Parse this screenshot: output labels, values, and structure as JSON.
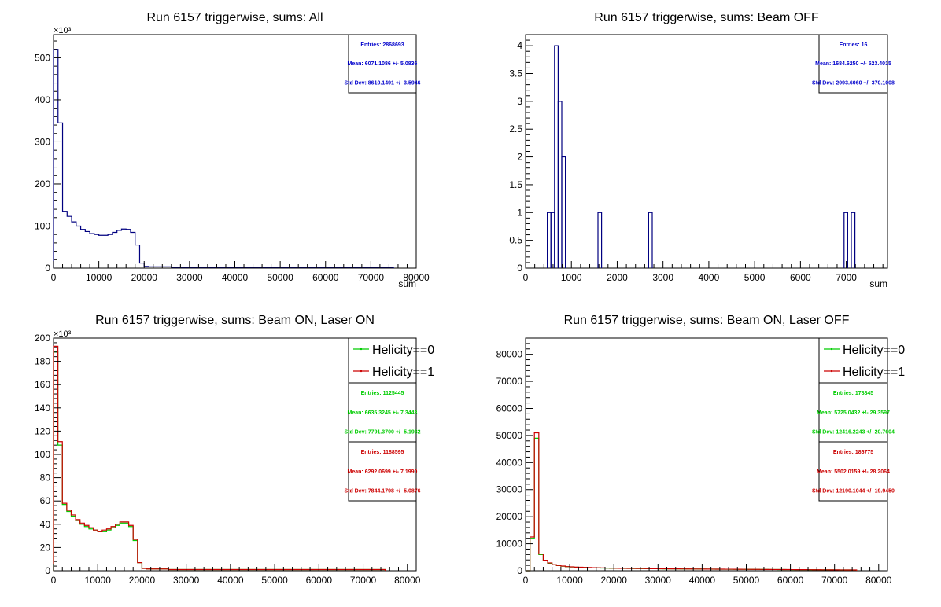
{
  "chart_data": [
    {
      "type": "histogram",
      "title": "Run 6157 triggerwise, sums: All",
      "xlabel": "sum",
      "ylabel": "",
      "y_multiplier": "×10³",
      "xlim": [
        0,
        80000
      ],
      "ylim": [
        0,
        555
      ],
      "x_ticks": [
        0,
        10000,
        20000,
        30000,
        40000,
        50000,
        60000,
        70000,
        80000
      ],
      "y_ticks": [
        0,
        100,
        200,
        300,
        400,
        500
      ],
      "bin_width": 1000,
      "series": [
        {
          "color": "#000080",
          "x": [
            0,
            1000,
            2000,
            3000,
            4000,
            5000,
            6000,
            7000,
            8000,
            9000,
            10000,
            11000,
            12000,
            13000,
            14000,
            15000,
            16000,
            17000,
            18000,
            19000,
            20000,
            21000,
            22000,
            23000,
            24000,
            25000,
            26000,
            27000,
            28000,
            29000,
            30000,
            31000,
            32000,
            33000,
            34000,
            35000,
            36000,
            37000,
            38000,
            39000,
            40000,
            41000,
            42000,
            43000,
            44000,
            45000,
            46000,
            47000,
            48000,
            49000,
            50000,
            51000,
            52000,
            53000,
            54000,
            55000,
            56000,
            57000,
            58000,
            59000,
            60000,
            61000,
            62000,
            63000,
            64000,
            65000,
            66000,
            67000,
            68000,
            69000,
            70000,
            71000,
            72000,
            73000,
            74000
          ],
          "values": [
            520,
            345,
            135,
            123,
            110,
            100,
            92,
            87,
            82,
            80,
            78,
            78,
            80,
            85,
            90,
            93,
            92,
            85,
            55,
            12,
            4,
            3,
            3,
            3,
            3,
            3,
            2,
            2,
            2,
            2,
            2,
            2,
            2,
            2,
            2,
            2,
            2,
            2,
            2,
            2,
            2,
            2,
            2,
            2,
            2,
            2,
            2,
            2,
            2,
            2,
            2,
            2,
            2,
            2,
            2,
            2,
            2,
            2,
            2,
            2,
            2,
            2,
            2,
            2,
            2,
            2,
            2,
            2,
            2,
            2,
            2,
            2,
            2,
            2,
            2
          ]
        }
      ],
      "stats": [
        {
          "color": "#0000cc",
          "entries": "Entries: 2868693",
          "mean": "Mean: 6071.1086 +/- 5.0836",
          "std": "Std Dev: 8610.1491 +/- 3.5946"
        }
      ]
    },
    {
      "type": "histogram",
      "title": "Run 6157 triggerwise, sums: Beam OFF",
      "xlabel": "sum",
      "ylabel": "",
      "y_multiplier": "",
      "xlim": [
        0,
        7900
      ],
      "ylim": [
        0,
        4.2
      ],
      "x_ticks": [
        0,
        1000,
        2000,
        3000,
        4000,
        5000,
        6000,
        7000
      ],
      "y_ticks": [
        0,
        0.5,
        1,
        1.5,
        2,
        2.5,
        3,
        3.5,
        4
      ],
      "bin_width": 79,
      "series": [
        {
          "color": "#000080",
          "x": [
            474,
            553,
            632,
            711,
            790,
            1580,
            2686,
            6952,
            7110
          ],
          "values": [
            1,
            1,
            4,
            3,
            2,
            1,
            1,
            1,
            1
          ]
        }
      ],
      "stats": [
        {
          "color": "#0000cc",
          "entries": "Entries: 16",
          "mean": "Mean: 1684.6250 +/- 523.4015",
          "std": "Std Dev: 2093.6060 +/- 370.1008"
        }
      ]
    },
    {
      "type": "histogram",
      "title": "Run 6157 triggerwise, sums: Beam ON, Laser ON",
      "xlabel": "",
      "ylabel": "",
      "y_multiplier": "×10³",
      "xlim": [
        0,
        82000
      ],
      "ylim": [
        0,
        200
      ],
      "x_ticks": [
        0,
        10000,
        20000,
        30000,
        40000,
        50000,
        60000,
        70000,
        80000
      ],
      "y_ticks": [
        0,
        20,
        40,
        60,
        80,
        100,
        120,
        140,
        160,
        180,
        200
      ],
      "bin_width": 1000,
      "legend": [
        "Helicity==0",
        "Helicity==1"
      ],
      "series": [
        {
          "name": "Helicity==0",
          "color": "#00cc00",
          "x": [
            0,
            1000,
            2000,
            3000,
            4000,
            5000,
            6000,
            7000,
            8000,
            9000,
            10000,
            11000,
            12000,
            13000,
            14000,
            15000,
            16000,
            17000,
            18000,
            19000,
            20000,
            21000,
            22000,
            23000,
            24000,
            25000,
            26000,
            27000,
            28000,
            29000,
            30000,
            31000,
            32000,
            33000,
            34000,
            35000,
            36000,
            37000,
            38000,
            39000,
            40000,
            41000,
            42000,
            43000,
            44000,
            45000,
            46000,
            47000,
            48000,
            49000,
            50000,
            51000,
            52000,
            53000,
            54000,
            55000,
            56000,
            57000,
            58000,
            59000,
            60000,
            61000,
            62000,
            63000,
            64000,
            65000,
            66000,
            67000,
            68000,
            69000,
            70000,
            71000,
            72000,
            73000,
            74000
          ],
          "values": [
            188,
            108,
            57,
            51,
            47,
            43,
            40,
            38,
            36,
            35,
            34,
            34,
            35,
            37,
            39,
            41,
            41,
            38,
            26,
            7,
            2,
            1.5,
            1.5,
            1.5,
            1.5,
            1.5,
            1,
            1,
            1,
            1,
            1,
            1,
            1,
            1,
            1,
            1,
            1,
            1,
            1,
            1,
            1,
            1,
            1,
            1,
            1,
            1,
            1,
            1,
            1,
            1,
            1,
            1,
            1,
            1,
            1,
            1,
            1,
            1,
            1,
            1,
            1,
            1,
            1,
            1,
            1,
            1,
            1,
            1,
            1,
            1,
            1,
            1,
            1,
            1,
            1
          ]
        },
        {
          "name": "Helicity==1",
          "color": "#cc0000",
          "x": [
            0,
            1000,
            2000,
            3000,
            4000,
            5000,
            6000,
            7000,
            8000,
            9000,
            10000,
            11000,
            12000,
            13000,
            14000,
            15000,
            16000,
            17000,
            18000,
            19000,
            20000,
            21000,
            22000,
            23000,
            24000,
            25000,
            26000,
            27000,
            28000,
            29000,
            30000,
            31000,
            32000,
            33000,
            34000,
            35000,
            36000,
            37000,
            38000,
            39000,
            40000,
            41000,
            42000,
            43000,
            44000,
            45000,
            46000,
            47000,
            48000,
            49000,
            50000,
            51000,
            52000,
            53000,
            54000,
            55000,
            56000,
            57000,
            58000,
            59000,
            60000,
            61000,
            62000,
            63000,
            64000,
            65000,
            66000,
            67000,
            68000,
            69000,
            70000,
            71000,
            72000,
            73000,
            74000
          ],
          "values": [
            193,
            111,
            58,
            52,
            48,
            44,
            41,
            39,
            37,
            35,
            34,
            35,
            36,
            38,
            40,
            42,
            42,
            39,
            27,
            7,
            2,
            1.5,
            1.5,
            1.5,
            1.5,
            1.5,
            1,
            1,
            1,
            1,
            1,
            1,
            1,
            1,
            1,
            1,
            1,
            1,
            1,
            1,
            1,
            1,
            1,
            1,
            1,
            1,
            1,
            1,
            1,
            1,
            1,
            1,
            1,
            1,
            1,
            1,
            1,
            1,
            1,
            1,
            1,
            1,
            1,
            1,
            1,
            1,
            1,
            1,
            1,
            1,
            1,
            1,
            1,
            1,
            1
          ]
        }
      ],
      "stats": [
        {
          "color": "#00cc00",
          "entries": "Entries: 1125445",
          "mean": "Mean: 6635.3245 +/- 7.3443",
          "std": "Std Dev: 7791.3700 +/- 5.1932"
        },
        {
          "color": "#cc0000",
          "entries": "Entries: 1188595",
          "mean": "Mean: 6292.0699 +/- 7.1990",
          "std": "Std Dev: 7844.1798 +/- 5.0876"
        }
      ]
    },
    {
      "type": "histogram",
      "title": "Run 6157 triggerwise, sums: Beam ON, Laser OFF",
      "xlabel": "",
      "ylabel": "",
      "y_multiplier": "",
      "xlim": [
        0,
        82000
      ],
      "ylim": [
        0,
        86000
      ],
      "x_ticks": [
        0,
        10000,
        20000,
        30000,
        40000,
        50000,
        60000,
        70000,
        80000
      ],
      "y_ticks": [
        0,
        10000,
        20000,
        30000,
        40000,
        50000,
        60000,
        70000,
        80000
      ],
      "bin_width": 1000,
      "legend": [
        "Helicity==0",
        "Helicity==1"
      ],
      "series": [
        {
          "name": "Helicity==0",
          "color": "#00cc00",
          "x": [
            0,
            1000,
            2000,
            3000,
            4000,
            5000,
            6000,
            7000,
            8000,
            9000,
            10000,
            11000,
            12000,
            13000,
            14000,
            15000,
            16000,
            17000,
            18000,
            19000,
            20000,
            21000,
            22000,
            23000,
            24000,
            25000,
            26000,
            27000,
            28000,
            29000,
            30000,
            31000,
            32000,
            33000,
            34000,
            35000,
            36000,
            37000,
            38000,
            39000,
            40000,
            41000,
            42000,
            43000,
            44000,
            45000,
            46000,
            47000,
            48000,
            49000,
            50000,
            51000,
            52000,
            53000,
            54000,
            55000,
            56000,
            57000,
            58000,
            59000,
            60000,
            61000,
            62000,
            63000,
            64000,
            65000,
            66000,
            67000,
            68000,
            69000,
            70000,
            71000,
            72000,
            73000,
            74000
          ],
          "values": [
            0,
            12000,
            49000,
            6000,
            3800,
            2800,
            2200,
            1900,
            1700,
            1500,
            1400,
            1300,
            1250,
            1200,
            1150,
            1100,
            1050,
            1000,
            980,
            950,
            920,
            900,
            880,
            860,
            840,
            820,
            800,
            780,
            760,
            740,
            720,
            700,
            690,
            680,
            670,
            660,
            650,
            640,
            630,
            620,
            610,
            600,
            590,
            580,
            570,
            560,
            550,
            540,
            530,
            520,
            510,
            500,
            490,
            480,
            470,
            460,
            450,
            440,
            430,
            420,
            410,
            400,
            390,
            380,
            370,
            360,
            350,
            340,
            330,
            320,
            310,
            300,
            290,
            280,
            270
          ]
        },
        {
          "name": "Helicity==1",
          "color": "#cc0000",
          "x": [
            0,
            1000,
            2000,
            3000,
            4000,
            5000,
            6000,
            7000,
            8000,
            9000,
            10000,
            11000,
            12000,
            13000,
            14000,
            15000,
            16000,
            17000,
            18000,
            19000,
            20000,
            21000,
            22000,
            23000,
            24000,
            25000,
            26000,
            27000,
            28000,
            29000,
            30000,
            31000,
            32000,
            33000,
            34000,
            35000,
            36000,
            37000,
            38000,
            39000,
            40000,
            41000,
            42000,
            43000,
            44000,
            45000,
            46000,
            47000,
            48000,
            49000,
            50000,
            51000,
            52000,
            53000,
            54000,
            55000,
            56000,
            57000,
            58000,
            59000,
            60000,
            61000,
            62000,
            63000,
            64000,
            65000,
            66000,
            67000,
            68000,
            69000,
            70000,
            71000,
            72000,
            73000,
            74000
          ],
          "values": [
            0,
            12500,
            51000,
            6200,
            3900,
            2900,
            2250,
            1950,
            1750,
            1550,
            1450,
            1350,
            1300,
            1250,
            1200,
            1150,
            1100,
            1050,
            1000,
            970,
            940,
            910,
            890,
            870,
            850,
            830,
            810,
            790,
            770,
            750,
            730,
            710,
            700,
            690,
            680,
            670,
            660,
            650,
            640,
            630,
            620,
            610,
            600,
            590,
            580,
            570,
            560,
            550,
            540,
            530,
            520,
            510,
            500,
            490,
            480,
            470,
            460,
            450,
            440,
            430,
            420,
            410,
            400,
            390,
            380,
            370,
            360,
            350,
            340,
            330,
            320,
            310,
            300,
            290,
            280
          ]
        }
      ],
      "stats": [
        {
          "color": "#00cc00",
          "entries": "Entries: 178845",
          "mean": "Mean: 5725.0432 +/- 29.3597",
          "std": "Std Dev: 12416.2243 +/- 20.7604"
        },
        {
          "color": "#cc0000",
          "entries": "Entries: 186775",
          "mean": "Mean: 5502.0159 +/- 28.2064",
          "std": "Std Dev: 12190.1044 +/- 19.9450"
        }
      ]
    }
  ]
}
